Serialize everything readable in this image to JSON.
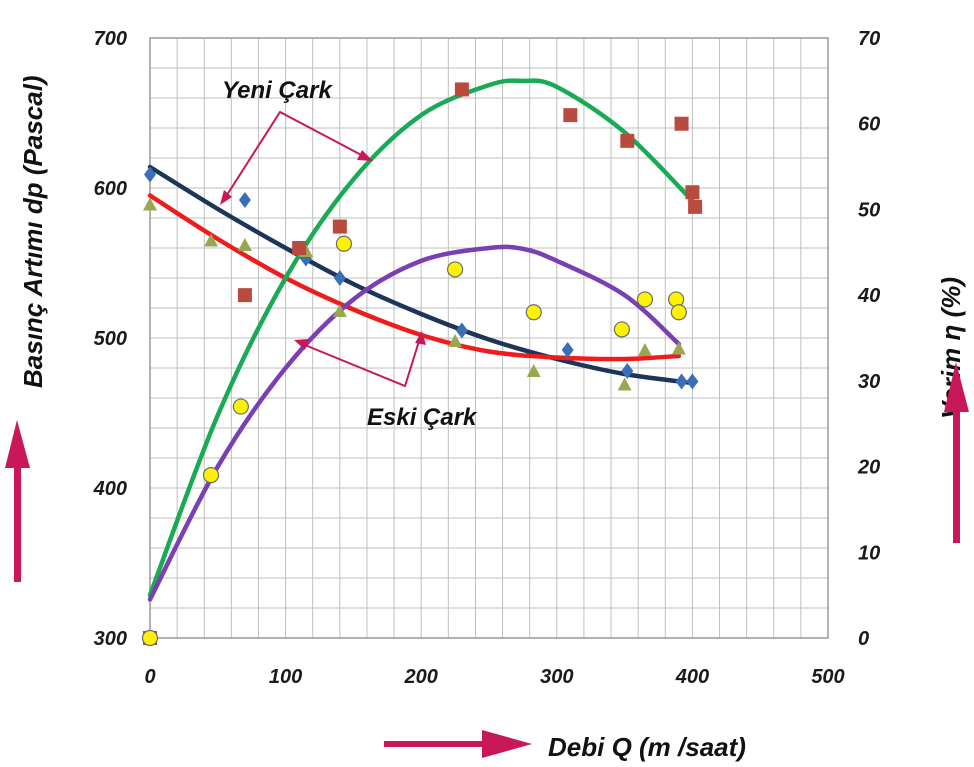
{
  "chart_data": {
    "type": "scatter",
    "xlabel": "Debi   Q  (m /saat)",
    "ylabel_left": "Basınç Artımı  dp  (Pascal)",
    "ylabel_right": "Verim   η     (%)",
    "x_ticks": [
      "0",
      "100",
      "200",
      "300",
      "400",
      "500"
    ],
    "y_left_ticks": [
      "300",
      "400",
      "500",
      "600",
      "700"
    ],
    "y_right_ticks": [
      "0",
      "10",
      "20",
      "30",
      "40",
      "50",
      "60",
      "70"
    ],
    "xlim": [
      0,
      500
    ],
    "ylim_left": [
      300,
      700
    ],
    "ylim_right": [
      0,
      70
    ],
    "grid": true,
    "annotations": [
      {
        "text": "Yeni Çark"
      },
      {
        "text": "Eski Çark"
      }
    ],
    "colors": {
      "yeni_pressure": "#1c3559",
      "eski_pressure": "#ee1c1c",
      "yeni_efficiency": "#1aaa55",
      "eski_efficiency": "#7a3fb0",
      "arrow": "#c8185a",
      "diamond": "#3a6fb8",
      "square": "#b84a3e",
      "triangle": "#9aa650",
      "circle": "#fff200",
      "grid": "#bfbfbf"
    },
    "series": [
      {
        "axis": "left",
        "marker": "diamond",
        "color": "#3a6fb8",
        "points": [
          [
            0,
            609
          ],
          [
            70,
            592
          ],
          [
            115,
            553
          ],
          [
            140,
            540
          ],
          [
            230,
            505
          ],
          [
            308,
            492
          ],
          [
            352,
            478
          ],
          [
            392,
            471
          ],
          [
            400,
            471
          ]
        ]
      },
      {
        "axis": "left",
        "marker": "triangle",
        "color": "#9aa650",
        "points": [
          [
            0,
            589
          ],
          [
            45,
            565
          ],
          [
            70,
            562
          ],
          [
            115,
            558
          ],
          [
            140,
            518
          ],
          [
            225,
            498
          ],
          [
            283,
            478
          ],
          [
            350,
            469
          ],
          [
            365,
            492
          ],
          [
            390,
            493
          ]
        ]
      },
      {
        "axis": "right",
        "marker": "square",
        "color": "#b84a3e",
        "points": [
          [
            0,
            0
          ],
          [
            70,
            40
          ],
          [
            110,
            45.5
          ],
          [
            140,
            48
          ],
          [
            230,
            64
          ],
          [
            310,
            61
          ],
          [
            352,
            58
          ],
          [
            392,
            60
          ],
          [
            400,
            52
          ],
          [
            402,
            50.3
          ]
        ]
      },
      {
        "axis": "right",
        "marker": "circle",
        "color": "#fff200",
        "points": [
          [
            0,
            0
          ],
          [
            45,
            19
          ],
          [
            67,
            27
          ],
          [
            143,
            46
          ],
          [
            225,
            43
          ],
          [
            283,
            38
          ],
          [
            348,
            36
          ],
          [
            365,
            39.5
          ],
          [
            388,
            39.5
          ],
          [
            390,
            38
          ]
        ]
      },
      {
        "axis": "left",
        "type": "line",
        "color": "#1c3559",
        "points": [
          [
            0,
            614
          ],
          [
            50,
            586
          ],
          [
            100,
            560
          ],
          [
            150,
            536
          ],
          [
            200,
            516
          ],
          [
            250,
            499
          ],
          [
            300,
            486
          ],
          [
            350,
            476
          ],
          [
            400,
            470
          ]
        ]
      },
      {
        "axis": "left",
        "type": "line",
        "color": "#ee1c1c",
        "points": [
          [
            0,
            595
          ],
          [
            50,
            566
          ],
          [
            100,
            540
          ],
          [
            150,
            519
          ],
          [
            200,
            502
          ],
          [
            250,
            491
          ],
          [
            300,
            487
          ],
          [
            350,
            486
          ],
          [
            390,
            488
          ]
        ]
      },
      {
        "axis": "right",
        "type": "line",
        "color": "#1aaa55",
        "points": [
          [
            0,
            5
          ],
          [
            50,
            26
          ],
          [
            100,
            42
          ],
          [
            150,
            53.5
          ],
          [
            200,
            61
          ],
          [
            250,
            64.5
          ],
          [
            275,
            65
          ],
          [
            300,
            64.3
          ],
          [
            350,
            59
          ],
          [
            400,
            51
          ]
        ]
      },
      {
        "axis": "right",
        "type": "line",
        "color": "#7a3fb0",
        "points": [
          [
            0,
            4.5
          ],
          [
            50,
            20
          ],
          [
            100,
            31.5
          ],
          [
            150,
            39.5
          ],
          [
            200,
            44
          ],
          [
            250,
            45.5
          ],
          [
            275,
            45.4
          ],
          [
            300,
            44
          ],
          [
            350,
            40
          ],
          [
            390,
            34.3
          ]
        ]
      }
    ]
  }
}
